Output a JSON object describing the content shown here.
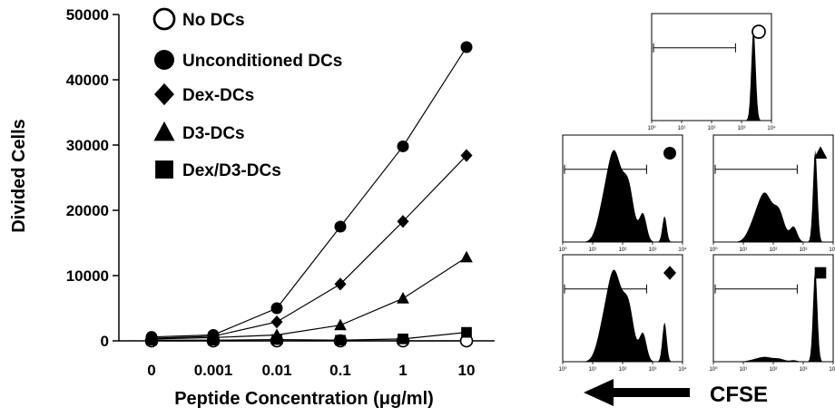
{
  "chart_data": {
    "type": "line",
    "xlabel": "Peptide Concentration (μg/ml)",
    "ylabel": "Divided Cells",
    "categories": [
      "0",
      "0.001",
      "0.01",
      "0.1",
      "1",
      "10"
    ],
    "ylim": [
      0,
      50000
    ],
    "yticks": [
      "0",
      "10000",
      "20000",
      "30000",
      "40000",
      "50000"
    ],
    "grid": false,
    "legend_position": "top-left",
    "series": [
      {
        "name": "No DCs",
        "marker": "circle-open",
        "values": [
          0,
          0,
          0,
          0,
          0,
          0
        ]
      },
      {
        "name": "Unconditioned DCs",
        "marker": "circle",
        "values": [
          600,
          900,
          5000,
          17500,
          29800,
          45000
        ]
      },
      {
        "name": "Dex-DCs",
        "marker": "diamond",
        "values": [
          400,
          700,
          2900,
          8700,
          18300,
          28400
        ]
      },
      {
        "name": "D3-DCs",
        "marker": "triangle",
        "values": [
          300,
          500,
          900,
          2400,
          6500,
          12800
        ]
      },
      {
        "name": "Dex/D3-DCs",
        "marker": "square",
        "values": [
          100,
          100,
          200,
          100,
          300,
          1300
        ]
      }
    ]
  },
  "flow_panels": {
    "axis_label": "CFSE",
    "tick_labels": [
      "10⁰",
      "10¹",
      "10²",
      "10³",
      "10⁴"
    ],
    "panels": [
      {
        "marker": "circle-open",
        "divided_fraction": 0.0
      },
      {
        "marker": "circle",
        "divided_fraction": 0.78
      },
      {
        "marker": "triangle",
        "divided_fraction": 0.35
      },
      {
        "marker": "diamond",
        "divided_fraction": 0.7
      },
      {
        "marker": "square",
        "divided_fraction": 0.05
      }
    ]
  }
}
